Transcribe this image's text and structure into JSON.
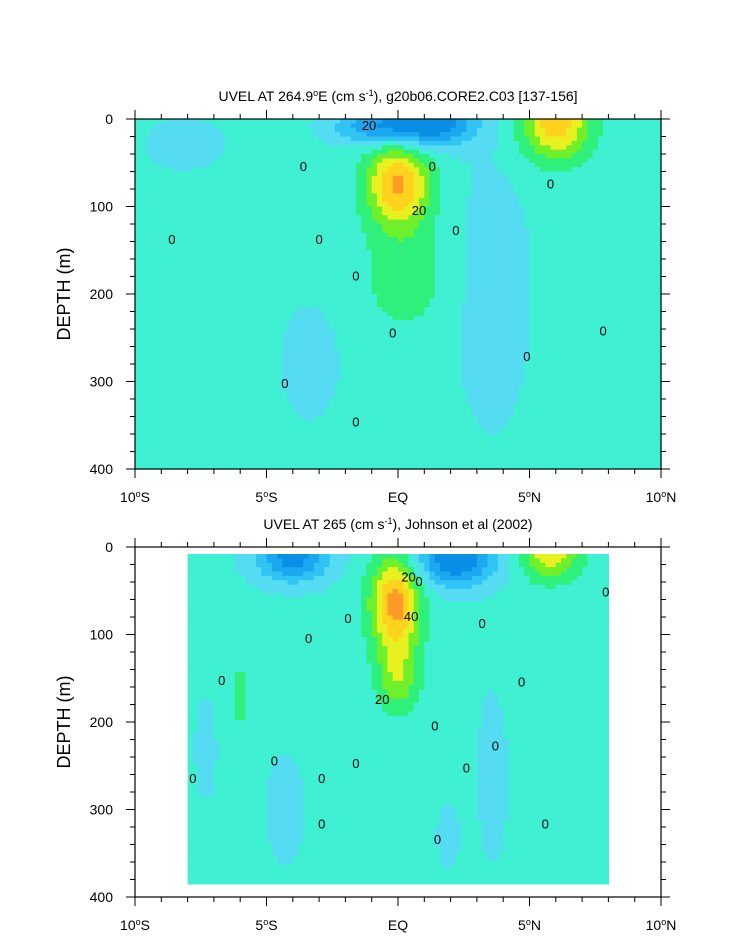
{
  "chart_data": [
    {
      "type": "heatmap",
      "subtype": "filled-contour",
      "title_parts": [
        "UVEL AT 264.9",
        "o",
        "E (cm s",
        "-1",
        "), g20b06.CORE2.C03 [137-156]"
      ],
      "ylabel": "DEPTH (m)",
      "xlabel": "",
      "x_range": [
        -10,
        10
      ],
      "y_range": [
        0,
        400
      ],
      "y_reversed": true,
      "x_ticks": [
        {
          "value": -10,
          "num": "10",
          "sup": "o",
          "hemi": "S"
        },
        {
          "value": -5,
          "num": "5",
          "sup": "o",
          "hemi": "S"
        },
        {
          "value": 0,
          "num": "EQ",
          "sup": "",
          "hemi": ""
        },
        {
          "value": 5,
          "num": "5",
          "sup": "o",
          "hemi": "N"
        },
        {
          "value": 10,
          "num": "10",
          "sup": "o",
          "hemi": "N"
        }
      ],
      "y_ticks": [
        0,
        100,
        200,
        300,
        400
      ],
      "contour_labels": [
        {
          "text": "20",
          "x": -1.1,
          "y": 8
        },
        {
          "text": "20",
          "x": 0.8,
          "y": 105
        },
        {
          "text": "0",
          "x": -3.6,
          "y": 55
        },
        {
          "text": "0",
          "x": 1.3,
          "y": 55
        },
        {
          "text": "0",
          "x": 5.8,
          "y": 75
        },
        {
          "text": "0",
          "x": -8.6,
          "y": 138
        },
        {
          "text": "0",
          "x": -3.0,
          "y": 138
        },
        {
          "text": "0",
          "x": 2.2,
          "y": 128
        },
        {
          "text": "0",
          "x": -1.6,
          "y": 180
        },
        {
          "text": "0",
          "x": -0.2,
          "y": 245
        },
        {
          "text": "0",
          "x": 4.9,
          "y": 272
        },
        {
          "text": "0",
          "x": 7.8,
          "y": 243
        },
        {
          "text": "0",
          "x": -4.3,
          "y": 303
        },
        {
          "text": "0",
          "x": -1.6,
          "y": 347
        }
      ],
      "features": [
        {
          "kind": "jet",
          "sign": "+",
          "center_lat": 0,
          "center_depth": 75,
          "peak": 50
        },
        {
          "kind": "jet",
          "sign": "+",
          "center_lat": 6.0,
          "center_depth": 10,
          "peak": 40
        },
        {
          "kind": "jet",
          "sign": "-",
          "center_lat": 0.8,
          "center_depth": 8,
          "peak": -45
        }
      ]
    },
    {
      "type": "heatmap",
      "subtype": "filled-contour",
      "title_parts": [
        "UVEL AT 265 (cm s",
        "-1",
        "), Johnson et al (2002)"
      ],
      "ylabel": "DEPTH (m)",
      "xlabel": "",
      "x_range": [
        -10,
        10
      ],
      "y_range": [
        0,
        400
      ],
      "y_reversed": true,
      "x_ticks": [
        {
          "value": -10,
          "num": "10",
          "sup": "o",
          "hemi": "S"
        },
        {
          "value": -5,
          "num": "5",
          "sup": "o",
          "hemi": "S"
        },
        {
          "value": 0,
          "num": "EQ",
          "sup": "",
          "hemi": ""
        },
        {
          "value": 5,
          "num": "5",
          "sup": "o",
          "hemi": "N"
        },
        {
          "value": 10,
          "num": "10",
          "sup": "o",
          "hemi": "N"
        }
      ],
      "y_ticks": [
        0,
        100,
        200,
        300,
        400
      ],
      "contour_labels": [
        {
          "text": "20",
          "x": 0.4,
          "y": 35
        },
        {
          "text": "0",
          "x": 0.8,
          "y": 40
        },
        {
          "text": "40",
          "x": 0.5,
          "y": 80
        },
        {
          "text": "20",
          "x": -0.6,
          "y": 175
        },
        {
          "text": "0",
          "x": 7.9,
          "y": 52
        },
        {
          "text": "0",
          "x": -1.9,
          "y": 82
        },
        {
          "text": "0",
          "x": 3.2,
          "y": 88
        },
        {
          "text": "0",
          "x": -3.4,
          "y": 105
        },
        {
          "text": "0",
          "x": -6.7,
          "y": 153
        },
        {
          "text": "0",
          "x": 4.7,
          "y": 155
        },
        {
          "text": "0",
          "x": 1.4,
          "y": 205
        },
        {
          "text": "0",
          "x": 3.7,
          "y": 228
        },
        {
          "text": "0",
          "x": -4.7,
          "y": 245
        },
        {
          "text": "0",
          "x": -1.6,
          "y": 248
        },
        {
          "text": "0",
          "x": 2.6,
          "y": 253
        },
        {
          "text": "0",
          "x": -7.8,
          "y": 265
        },
        {
          "text": "0",
          "x": -2.9,
          "y": 265
        },
        {
          "text": "0",
          "x": -2.9,
          "y": 317
        },
        {
          "text": "0",
          "x": 5.6,
          "y": 317
        },
        {
          "text": "0",
          "x": 1.5,
          "y": 335
        }
      ],
      "data_extent": {
        "lon_min": -8.0,
        "lon_max": 8.0,
        "depth_min": 8,
        "depth_max": 385
      },
      "features": [
        {
          "kind": "jet",
          "sign": "+",
          "center_lat": 0,
          "center_depth": 65,
          "peak": 50
        },
        {
          "kind": "jet",
          "sign": "+",
          "center_lat": 5.8,
          "center_depth": 10,
          "peak": 35
        },
        {
          "kind": "jet",
          "sign": "-",
          "center_lat": -4.0,
          "center_depth": 15,
          "peak": -35
        },
        {
          "kind": "jet",
          "sign": "-",
          "center_lat": 2.2,
          "center_depth": 20,
          "peak": -40
        }
      ]
    }
  ],
  "colors": {
    "level_-40": "#0a8fe6",
    "level_-30": "#1ca8f0",
    "level_-20": "#30c4f5",
    "level_-10": "#55dcf2",
    "level_0": "#3ff0d2",
    "level_10": "#2ff07a",
    "level_20": "#6ff02a",
    "level_30": "#e8f020",
    "level_40": "#ffd21e",
    "level_50": "#ff9a28"
  }
}
